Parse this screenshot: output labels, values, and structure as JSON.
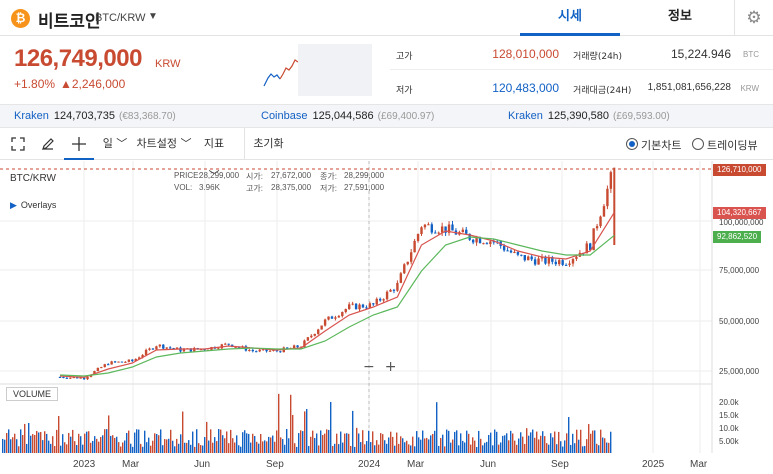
{
  "header": {
    "coin_icon_glyph": "₿",
    "coin_name": "비트코인",
    "pair": "BTC/KRW",
    "tabs": [
      {
        "label": "시세"
      },
      {
        "label": "정보"
      }
    ],
    "settings_icon": "gear-icon"
  },
  "price": {
    "main": "126,749,000",
    "unit": "KRW",
    "change_pct": "+1.80%",
    "change_abs": "▲2,246,000",
    "high_label": "고가",
    "high": "128,010,000",
    "low_label": "저가",
    "low": "120,483,000",
    "volume_label": "거래량(24h)",
    "volume": "15,224.946",
    "volume_unit": "BTC",
    "trade_value_label": "거래대금(24H)",
    "trade_value": "1,851,081,656,228",
    "trade_value_unit": "KRW"
  },
  "exchanges": [
    {
      "name": "Kraken",
      "price": "124,703,735",
      "sub": "(€83,368.70)"
    },
    {
      "name": "Coinbase",
      "price": "125,044,586",
      "sub": "(£69,400.97)"
    },
    {
      "name": "Kraken",
      "price": "125,390,580",
      "sub": "(£69,593.00)"
    }
  ],
  "toolbar": {
    "period": "일 ﹀",
    "chart_settings": "차트설정 ﹀",
    "indicators": "지표 ﹀",
    "reset": "초기화",
    "radio_basic": "기본차트",
    "radio_trading": "트레이딩뷰"
  },
  "chart": {
    "pair_label": "BTC/KRW",
    "overlays_label": "Overlays",
    "volume_label": "VOLUME",
    "ohlc": {
      "price_label": "PRICE:",
      "price": "28,299,000",
      "vol_label": "VOL:",
      "vol": "3.96K",
      "open_label": "시가:",
      "open": "27,672,000",
      "high_label": "고가:",
      "high": "28,375,000",
      "close_label": "종가:",
      "close": "28,299,000",
      "low_label": "저가:",
      "low": "27,591,000"
    },
    "badges": {
      "current": "126,710,000",
      "ma_short": "104,320,667",
      "ma_long": "92,862,520"
    },
    "price_ticks": [
      "100,000,000",
      "75,000,000",
      "50,000,000",
      "25,000,000"
    ],
    "volume_ticks": [
      "20.0k",
      "15.0k",
      "10.0k",
      "5.00k"
    ],
    "x_ticks": [
      "2023",
      "Mar",
      "Jun",
      "Sep",
      "2024",
      "Mar",
      "Jun",
      "Sep",
      "2025",
      "Mar"
    ],
    "zoom_minus": "−",
    "zoom_plus": "+",
    "colors": {
      "up": "#c84a31",
      "down": "#1261c4",
      "ma_short": "#d9534f",
      "ma_long": "#5cb85c"
    }
  },
  "chart_data": {
    "type": "line",
    "title": "BTC/KRW",
    "xlabel": "",
    "ylabel": "",
    "ylim": [
      0,
      130000000
    ],
    "x": [
      "2022-12",
      "2023-01",
      "2023-02",
      "2023-03",
      "2023-04",
      "2023-05",
      "2023-06",
      "2023-07",
      "2023-08",
      "2023-09",
      "2023-10",
      "2023-11",
      "2023-12",
      "2024-01",
      "2024-02",
      "2024-03",
      "2024-04",
      "2024-05",
      "2024-06",
      "2024-07",
      "2024-08",
      "2024-09",
      "2024-10",
      "2024-11"
    ],
    "series": [
      {
        "name": "",
        "values": [
          22000000,
          21500000,
          29000000,
          30000000,
          38000000,
          35500000,
          36000000,
          38500000,
          35000000,
          35000000,
          37500000,
          50000000,
          57000000,
          58000000,
          68000000,
          98000000,
          96000000,
          92000000,
          90000000,
          82000000,
          80000000,
          80000000,
          88000000,
          126710000
        ]
      },
      {
        "name": "",
        "values": [
          22500000,
          21800000,
          26000000,
          29000000,
          35500000,
          36000000,
          36000000,
          37500000,
          36500000,
          35500000,
          36500000,
          45000000,
          53000000,
          57000000,
          62000000,
          88000000,
          95000000,
          93000000,
          90000000,
          85000000,
          82000000,
          81000000,
          85000000,
          104320667
        ]
      },
      {
        "name": "",
        "values": [
          23000000,
          22500000,
          24000000,
          27000000,
          32000000,
          34000000,
          35000000,
          36000000,
          36500000,
          36000000,
          36000000,
          40000000,
          47000000,
          53000000,
          57000000,
          75000000,
          88000000,
          92000000,
          91000000,
          88000000,
          85000000,
          83000000,
          83000000,
          92862520
        ]
      }
    ],
    "grid": true,
    "legend": "none"
  }
}
